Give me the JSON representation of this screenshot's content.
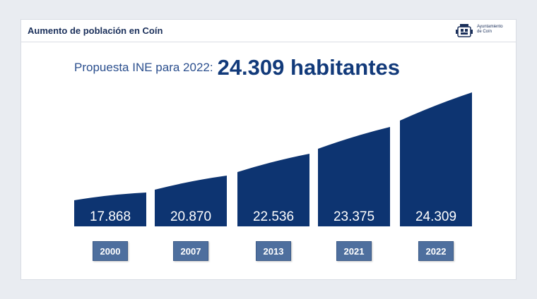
{
  "header": {
    "title": "Aumento de población en Coín",
    "logo_text": [
      "Ayuntamiento",
      "de Coín"
    ]
  },
  "headline": {
    "label": "Propuesta INE para 2022:",
    "value": "24.309 habitantes"
  },
  "chart_data": {
    "type": "bar",
    "categories": [
      "2000",
      "2007",
      "2013",
      "2021",
      "2022"
    ],
    "values": [
      17868,
      20870,
      22536,
      23375,
      24309
    ],
    "value_labels": [
      "17.868",
      "20.870",
      "22.536",
      "23.375",
      "24.309"
    ],
    "title": "",
    "xlabel": "",
    "ylabel": "",
    "grid": false,
    "colors": {
      "bar": "#0d3471",
      "label_box": "#4e6f9e",
      "label_text": "#ffffff"
    }
  }
}
